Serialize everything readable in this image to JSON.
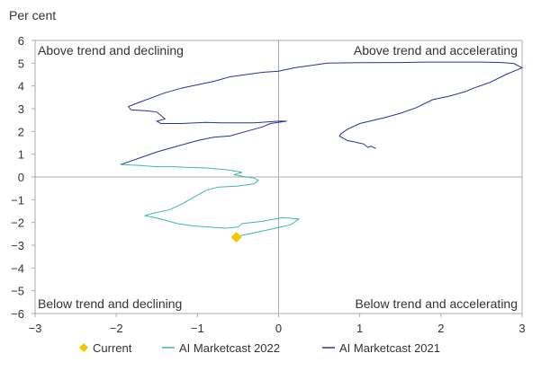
{
  "chart_data": {
    "type": "line",
    "ylabel": "Per cent",
    "xlabel": "",
    "xlim": [
      -3,
      3
    ],
    "ylim": [
      -6,
      6
    ],
    "x_ticks": [
      "-3",
      "-2",
      "-1",
      "0",
      "1",
      "2",
      "3"
    ],
    "y_ticks": [
      "6",
      "5",
      "4",
      "3",
      "2",
      "1",
      "0",
      "-1",
      "-2",
      "-3",
      "-4",
      "-5",
      "-6"
    ],
    "grid": false,
    "quadrant_labels": {
      "top_left": "Above trend and declining",
      "top_right": "Above trend and accelerating",
      "bottom_left": "Below trend and declining",
      "bottom_right": "Below trend and accelerating"
    },
    "legend_position": "bottom",
    "colors": {
      "current": "#f5c800",
      "ai2022": "#3db8b0",
      "ai2021": "#253494",
      "axis": "#aaaaaa"
    },
    "series": [
      {
        "name": "AI Marketcast 2021",
        "points": [
          [
            1.2,
            1.25
          ],
          [
            1.14,
            1.35
          ],
          [
            1.1,
            1.3
          ],
          [
            1.05,
            1.45
          ],
          [
            0.98,
            1.5
          ],
          [
            0.92,
            1.55
          ],
          [
            0.85,
            1.6
          ],
          [
            0.8,
            1.7
          ],
          [
            0.75,
            1.8
          ],
          [
            0.77,
            1.9
          ],
          [
            0.85,
            2.1
          ],
          [
            1.0,
            2.35
          ],
          [
            1.3,
            2.6
          ],
          [
            1.5,
            2.8
          ],
          [
            1.7,
            3.05
          ],
          [
            1.9,
            3.4
          ],
          [
            2.1,
            3.55
          ],
          [
            2.3,
            3.75
          ],
          [
            2.4,
            3.9
          ],
          [
            2.6,
            4.15
          ],
          [
            2.8,
            4.5
          ],
          [
            2.9,
            4.65
          ],
          [
            3.0,
            4.8
          ],
          [
            2.9,
            4.98
          ],
          [
            2.75,
            5.03
          ],
          [
            2.5,
            5.05
          ],
          [
            2.1,
            5.05
          ],
          [
            1.8,
            5.05
          ],
          [
            1.5,
            5.03
          ],
          [
            1.0,
            5.02
          ],
          [
            0.6,
            5.0
          ],
          [
            0.4,
            4.9
          ],
          [
            0.2,
            4.8
          ],
          [
            0.0,
            4.65
          ],
          [
            -0.2,
            4.6
          ],
          [
            -0.4,
            4.5
          ],
          [
            -0.6,
            4.4
          ],
          [
            -0.8,
            4.2
          ],
          [
            -1.0,
            4.05
          ],
          [
            -1.2,
            3.9
          ],
          [
            -1.4,
            3.7
          ],
          [
            -1.55,
            3.5
          ],
          [
            -1.7,
            3.3
          ],
          [
            -1.85,
            3.1
          ],
          [
            -1.82,
            2.95
          ],
          [
            -1.6,
            2.9
          ],
          [
            -1.5,
            2.85
          ],
          [
            -1.45,
            2.7
          ],
          [
            -1.4,
            2.55
          ],
          [
            -1.5,
            2.45
          ],
          [
            -1.45,
            2.35
          ],
          [
            -1.2,
            2.35
          ],
          [
            -0.9,
            2.4
          ],
          [
            -0.7,
            2.38
          ],
          [
            -0.5,
            2.38
          ],
          [
            -0.3,
            2.38
          ],
          [
            0.0,
            2.45
          ],
          [
            0.1,
            2.45
          ],
          [
            -0.1,
            2.35
          ],
          [
            -0.2,
            2.2
          ],
          [
            -0.4,
            2.0
          ],
          [
            -0.6,
            1.8
          ],
          [
            -0.8,
            1.75
          ],
          [
            -1.0,
            1.6
          ],
          [
            -1.2,
            1.4
          ],
          [
            -1.5,
            1.1
          ],
          [
            -1.7,
            0.85
          ],
          [
            -1.9,
            0.6
          ],
          [
            -1.95,
            0.55
          ]
        ]
      },
      {
        "name": "AI Marketcast 2022",
        "points": [
          [
            -1.95,
            0.55
          ],
          [
            -1.7,
            0.5
          ],
          [
            -1.5,
            0.45
          ],
          [
            -1.3,
            0.45
          ],
          [
            -1.1,
            0.42
          ],
          [
            -0.9,
            0.4
          ],
          [
            -0.75,
            0.35
          ],
          [
            -0.6,
            0.3
          ],
          [
            -0.45,
            0.2
          ],
          [
            -0.55,
            0.1
          ],
          [
            -0.4,
            0.0
          ],
          [
            -0.3,
            -0.05
          ],
          [
            -0.25,
            -0.15
          ],
          [
            -0.3,
            -0.3
          ],
          [
            -0.5,
            -0.4
          ],
          [
            -0.75,
            -0.45
          ],
          [
            -0.9,
            -0.6
          ],
          [
            -1.05,
            -0.9
          ],
          [
            -1.2,
            -1.2
          ],
          [
            -1.35,
            -1.45
          ],
          [
            -1.55,
            -1.6
          ],
          [
            -1.65,
            -1.7
          ],
          [
            -1.5,
            -1.8
          ],
          [
            -1.35,
            -1.95
          ],
          [
            -1.25,
            -2.05
          ],
          [
            -1.05,
            -2.15
          ],
          [
            -0.85,
            -2.2
          ],
          [
            -0.65,
            -2.25
          ],
          [
            -0.5,
            -2.2
          ],
          [
            -0.45,
            -2.05
          ],
          [
            -0.2,
            -1.95
          ],
          [
            0.05,
            -1.78
          ],
          [
            0.25,
            -1.85
          ],
          [
            0.15,
            -2.1
          ],
          [
            -0.1,
            -2.3
          ],
          [
            -0.3,
            -2.45
          ],
          [
            -0.5,
            -2.6
          ]
        ]
      }
    ],
    "current_point": {
      "name": "Current",
      "x": -0.52,
      "y": -2.65
    }
  }
}
